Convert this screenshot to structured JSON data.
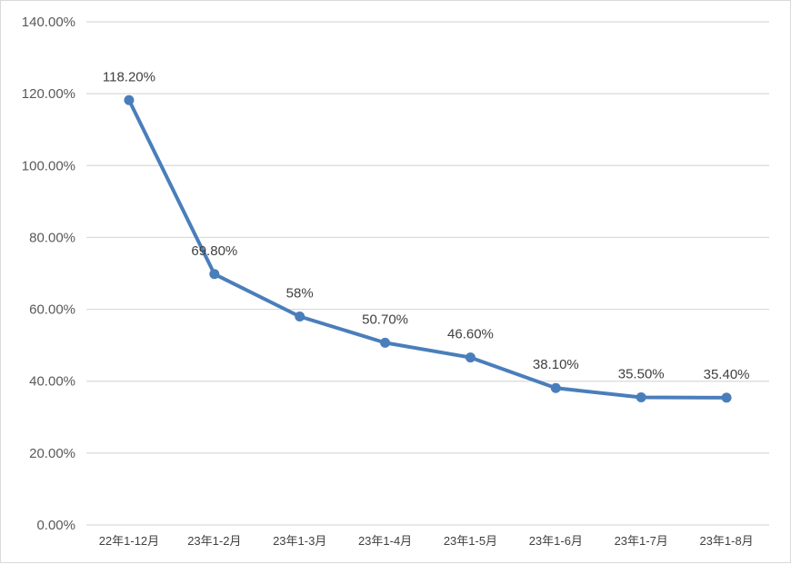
{
  "chart_data": {
    "type": "line",
    "categories": [
      "22年1-12月",
      "23年1-2月",
      "23年1-3月",
      "23年1-4月",
      "23年1-5月",
      "23年1-6月",
      "23年1-7月",
      "23年1-8月"
    ],
    "series": [
      {
        "values": [
          118.2,
          69.8,
          58,
          50.7,
          46.6,
          38.1,
          35.5,
          35.4
        ],
        "data_labels": [
          "118.20%",
          "69.80%",
          "58%",
          "50.70%",
          "46.60%",
          "38.10%",
          "35.50%",
          "35.40%"
        ],
        "color": "#4a7ebb"
      }
    ],
    "y_ticks": [
      "0.00%",
      "20.00%",
      "40.00%",
      "60.00%",
      "80.00%",
      "100.00%",
      "120.00%",
      "140.00%"
    ],
    "ylim": [
      0,
      140
    ],
    "grid": true,
    "legend": "none",
    "gridline_color": "#d9d9d9"
  }
}
